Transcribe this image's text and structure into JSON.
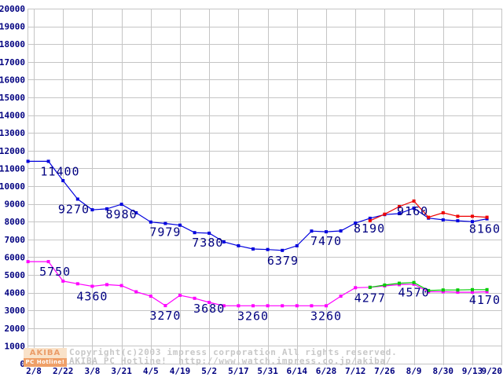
{
  "watermark": {
    "copyright_line": "Copyright(c)2003 impress corporation All rights reserved.",
    "site_line": "AKIBA PC Hotline!  http://www.watch.impress.co.jp/akiba/",
    "logo_top": "AKIBA",
    "logo_bottom": "PC Hotline!"
  },
  "chart_data": {
    "type": "line",
    "title": "",
    "xlabel": "",
    "ylabel": "",
    "y_axis": {
      "min": 0,
      "max": 20000,
      "step": 1000
    },
    "grid": true,
    "x_tick_labels": [
      "2/8",
      "2/22",
      "3/8",
      "3/21",
      "4/5",
      "4/19",
      "5/2",
      "5/17",
      "5/31",
      "6/14",
      "6/28",
      "7/12",
      "7/26",
      "8/9",
      "8/30",
      "9/13",
      "9/20"
    ],
    "x_unit_note": "t = x-gridline index (0 = 2/8), data sampled twice per gridline interval",
    "series": [
      {
        "name": "price-series-blue",
        "color": "#0000dd",
        "points": [
          [
            -0.2,
            11400
          ],
          [
            0.5,
            11400
          ],
          [
            1,
            10310
          ],
          [
            1.5,
            9270
          ],
          [
            2,
            8670
          ],
          [
            2.5,
            8720
          ],
          [
            3,
            8980
          ],
          [
            3.5,
            8500
          ],
          [
            4,
            7979
          ],
          [
            4.5,
            7900
          ],
          [
            5,
            7800
          ],
          [
            5.5,
            7380
          ],
          [
            6,
            7350
          ],
          [
            6.5,
            6860
          ],
          [
            7,
            6640
          ],
          [
            7.5,
            6460
          ],
          [
            8,
            6430
          ],
          [
            8.5,
            6379
          ],
          [
            9,
            6640
          ],
          [
            9.5,
            7470
          ],
          [
            10,
            7430
          ],
          [
            10.5,
            7480
          ],
          [
            11,
            7920
          ],
          [
            11.5,
            8190
          ],
          [
            12,
            8400
          ],
          [
            12.5,
            8450
          ],
          [
            13,
            8760
          ],
          [
            13.5,
            8200
          ],
          [
            14,
            8100
          ],
          [
            14.5,
            8050
          ],
          [
            15,
            8000
          ],
          [
            15.5,
            8160
          ]
        ]
      },
      {
        "name": "price-series-magenta",
        "color": "#ff00ff",
        "points": [
          [
            -0.2,
            5750
          ],
          [
            0.5,
            5750
          ],
          [
            1,
            4650
          ],
          [
            1.5,
            4500
          ],
          [
            2,
            4360
          ],
          [
            2.5,
            4450
          ],
          [
            3,
            4400
          ],
          [
            3.5,
            4050
          ],
          [
            4,
            3800
          ],
          [
            4.5,
            3270
          ],
          [
            5,
            3850
          ],
          [
            5.5,
            3680
          ],
          [
            6,
            3450
          ],
          [
            6.5,
            3260
          ],
          [
            7,
            3260
          ],
          [
            7.5,
            3260
          ],
          [
            8,
            3260
          ],
          [
            8.5,
            3260
          ],
          [
            9,
            3260
          ],
          [
            9.5,
            3260
          ],
          [
            10,
            3260
          ],
          [
            10.5,
            3800
          ],
          [
            11,
            4277
          ],
          [
            11.5,
            4300
          ],
          [
            12,
            4380
          ],
          [
            12.5,
            4450
          ],
          [
            13,
            4480
          ],
          [
            13.5,
            4050
          ],
          [
            14,
            4050
          ],
          [
            14.5,
            4020
          ],
          [
            15,
            4020
          ],
          [
            15.5,
            4050
          ]
        ]
      },
      {
        "name": "price-series-red",
        "color": "#ee0000",
        "points": [
          [
            11.5,
            8050
          ],
          [
            12,
            8420
          ],
          [
            12.5,
            8850
          ],
          [
            13,
            9160
          ],
          [
            13.5,
            8250
          ],
          [
            14,
            8500
          ],
          [
            14.5,
            8300
          ],
          [
            15,
            8300
          ],
          [
            15.5,
            8250
          ]
        ]
      },
      {
        "name": "price-series-green",
        "color": "#00cc00",
        "points": [
          [
            11.5,
            4300
          ],
          [
            12,
            4430
          ],
          [
            12.5,
            4530
          ],
          [
            13,
            4570
          ],
          [
            13.5,
            4120
          ],
          [
            14,
            4150
          ],
          [
            14.5,
            4150
          ],
          [
            15,
            4170
          ],
          [
            15.5,
            4170
          ]
        ]
      }
    ],
    "annotations": [
      {
        "text": "11400",
        "t": 0.9,
        "v": 11400
      },
      {
        "text": "9270",
        "t": 1.37,
        "v": 9270
      },
      {
        "text": "8980",
        "t": 3.0,
        "v": 8980
      },
      {
        "text": "7979",
        "t": 4.5,
        "v": 7979
      },
      {
        "text": "7380",
        "t": 5.95,
        "v": 7380
      },
      {
        "text": "6379",
        "t": 8.52,
        "v": 6379
      },
      {
        "text": "7470",
        "t": 10.0,
        "v": 7470
      },
      {
        "text": "8190",
        "t": 11.48,
        "v": 8190
      },
      {
        "text": "9160",
        "t": 12.96,
        "v": 9160
      },
      {
        "text": "8160",
        "t": 15.5,
        "v": 8160
      },
      {
        "text": "5750",
        "t": 0.73,
        "v": 5750
      },
      {
        "text": "4360",
        "t": 2.0,
        "v": 4360
      },
      {
        "text": "3270",
        "t": 4.5,
        "v": 3270
      },
      {
        "text": "3680",
        "t": 6.0,
        "v": 3680
      },
      {
        "text": "3260",
        "t": 7.5,
        "v": 3260
      },
      {
        "text": "3260",
        "t": 10.0,
        "v": 3260
      },
      {
        "text": "4277",
        "t": 11.5,
        "v": 4277
      },
      {
        "text": "4570",
        "t": 13.0,
        "v": 4570
      },
      {
        "text": "4170",
        "t": 15.5,
        "v": 4170
      }
    ],
    "colors": {
      "grid": "#c5c5c5",
      "axis_text": "#000080",
      "annotation_text": "#000080",
      "watermark_text": "#c8c8c8",
      "background": "#ffffff"
    }
  }
}
